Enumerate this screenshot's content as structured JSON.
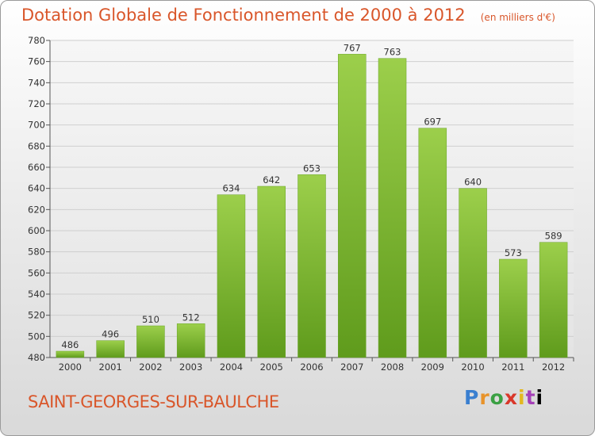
{
  "header": {
    "title": "Dotation Globale de Fonctionnement de 2000 à 2012",
    "unit": "(en milliers d'€)"
  },
  "footer": {
    "commune": "SAINT-GEORGES-SUR-BAULCHE",
    "logo_letters": [
      "P",
      "r",
      "o",
      "x",
      "i",
      "t",
      "i"
    ]
  },
  "colors": {
    "title": "#d9562a",
    "bar_top": "#9ccf4b",
    "bar_bottom": "#5f9b1c",
    "grid": "#cfcfcf"
  },
  "chart_data": {
    "type": "bar",
    "title": "Dotation Globale de Fonctionnement de 2000 à 2012",
    "xlabel": "",
    "ylabel": "",
    "categories": [
      "2000",
      "2001",
      "2002",
      "2003",
      "2004",
      "2005",
      "2006",
      "2007",
      "2008",
      "2009",
      "2010",
      "2011",
      "2012"
    ],
    "values": [
      486,
      496,
      510,
      512,
      634,
      642,
      653,
      767,
      763,
      697,
      640,
      573,
      589
    ],
    "ylim": [
      480,
      780
    ],
    "yticks": [
      480,
      500,
      520,
      540,
      560,
      580,
      600,
      620,
      640,
      660,
      680,
      700,
      720,
      740,
      760,
      780
    ],
    "grid": true,
    "legend": "none"
  }
}
